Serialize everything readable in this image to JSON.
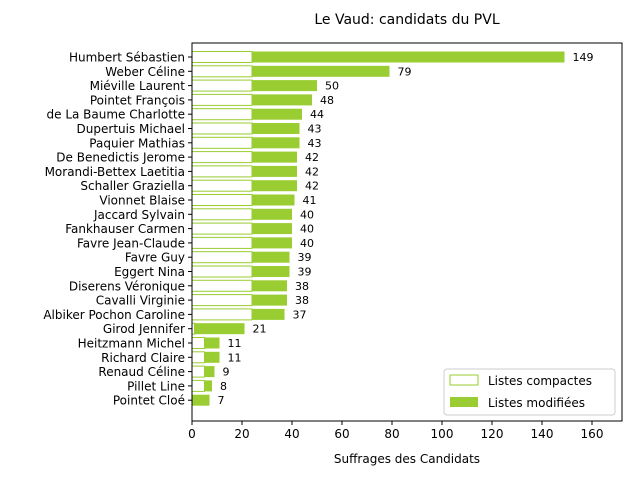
{
  "chart_data": {
    "type": "bar",
    "orientation": "horizontal",
    "stacked": true,
    "title": "Le Vaud: candidats du PVL",
    "xlabel": "Suffrages des Candidats",
    "ylabel": "",
    "xlim": [
      0,
      172
    ],
    "x_ticks": [
      "0",
      "20",
      "40",
      "60",
      "80",
      "100",
      "120",
      "140",
      "160"
    ],
    "grid": false,
    "legend_position": "bottom-right",
    "categories": [
      "Humbert Sébastien",
      "Weber Céline",
      "Miéville Laurent",
      "Pointet François",
      "de La Baume Charlotte",
      "Dupertuis Michael",
      "Paquier Mathias",
      "De Benedictis Jerome",
      "Morandi-Bettex Laetitia",
      "Schaller Graziella",
      "Vionnet Blaise",
      "Jaccard Sylvain",
      "Fankhauser Carmen",
      "Favre Jean-Claude",
      "Favre Guy",
      "Eggert Nina",
      "Diserens Véronique",
      "Cavalli Virginie",
      "Albiker Pochon Caroline",
      "Girod Jennifer",
      "Heitzmann Michel",
      "Richard Claire",
      "Renaud Céline",
      "Pillet Line",
      "Pointet Cloé"
    ],
    "series": [
      {
        "name": "Listes compactes",
        "color": "#9acd32",
        "style": "outline",
        "values": [
          24,
          24,
          24,
          24,
          24,
          24,
          24,
          24,
          24,
          24,
          24,
          24,
          24,
          24,
          24,
          24,
          24,
          24,
          24,
          1,
          5,
          5,
          5,
          5,
          0
        ]
      },
      {
        "name": "Listes modifiées",
        "color": "#9acd32",
        "style": "filled",
        "values": [
          125,
          55,
          26,
          24,
          20,
          19,
          19,
          18,
          18,
          18,
          17,
          16,
          16,
          16,
          15,
          15,
          14,
          14,
          13,
          20,
          6,
          6,
          4,
          3,
          7
        ]
      }
    ],
    "totals": [
      "149",
      "79",
      "50",
      "48",
      "44",
      "43",
      "43",
      "42",
      "42",
      "42",
      "41",
      "40",
      "40",
      "40",
      "39",
      "39",
      "38",
      "38",
      "37",
      "21",
      "11",
      "11",
      "9",
      "8",
      "7"
    ]
  }
}
